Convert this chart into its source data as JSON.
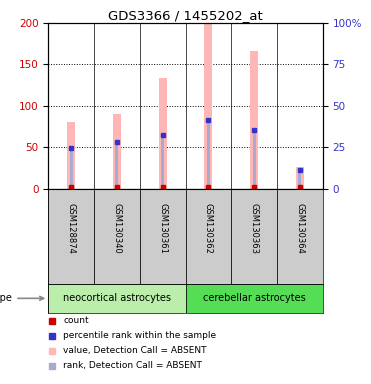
{
  "title": "GDS3366 / 1455202_at",
  "samples": [
    "GSM128874",
    "GSM130340",
    "GSM130361",
    "GSM130362",
    "GSM130363",
    "GSM130364"
  ],
  "cell_types": [
    "neocortical astrocytes",
    "neocortical astrocytes",
    "neocortical astrocytes",
    "cerebellar astrocytes",
    "cerebellar astrocytes",
    "cerebellar astrocytes"
  ],
  "value_absent": [
    80,
    90,
    134,
    200,
    166,
    26
  ],
  "rank_absent": [
    49,
    56,
    65,
    83,
    71,
    22
  ],
  "percentile_rank": [
    49,
    56,
    65,
    83,
    71,
    22
  ],
  "ylim_left": [
    0,
    200
  ],
  "ylim_right": [
    0,
    100
  ],
  "yticks_left": [
    0,
    50,
    100,
    150,
    200
  ],
  "yticks_right": [
    0,
    25,
    50,
    75,
    100
  ],
  "yticklabels_right": [
    "0",
    "25",
    "50",
    "75",
    "100%"
  ],
  "pink_color": "#FFB6B6",
  "blue_rank_color": "#AAAACC",
  "red_color": "#CC0000",
  "dark_blue_color": "#3333CC",
  "neo_color": "#BBEEAA",
  "cer_color": "#55DD55",
  "sample_box_color": "#CCCCCC",
  "bar_width": 0.18
}
